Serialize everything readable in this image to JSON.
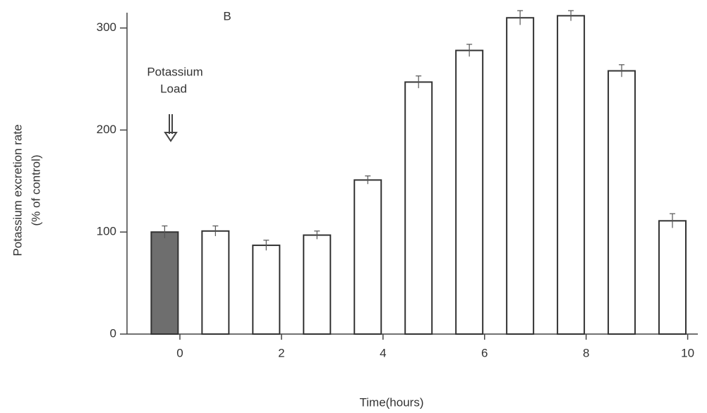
{
  "chart_data": {
    "type": "bar",
    "annotations": [
      "B",
      "Potassium",
      "Load"
    ],
    "xlabel": "Time(hours)",
    "ylabel": [
      "Potassium excretion rate",
      "(% of control)"
    ],
    "x": [
      -0.3,
      0.7,
      1.7,
      2.7,
      3.7,
      4.7,
      5.7,
      6.7,
      7.7,
      8.7,
      9.7
    ],
    "values": [
      100,
      101,
      87,
      97,
      151,
      247,
      278,
      310,
      312,
      258,
      111
    ],
    "errors": [
      6,
      5,
      5,
      4,
      4,
      6,
      6,
      7,
      5,
      6,
      7
    ],
    "colors": [
      "#6e6e6e",
      "#ffffff",
      "#ffffff",
      "#ffffff",
      "#ffffff",
      "#ffffff",
      "#ffffff",
      "#ffffff",
      "#ffffff",
      "#ffffff",
      "#ffffff"
    ],
    "xlim": [
      -1,
      10.2
    ],
    "xticks": [
      0,
      2,
      4,
      6,
      8,
      10
    ],
    "ylim": [
      0,
      315
    ],
    "yticks": [
      0,
      100,
      200,
      300
    ],
    "grid": false
  }
}
